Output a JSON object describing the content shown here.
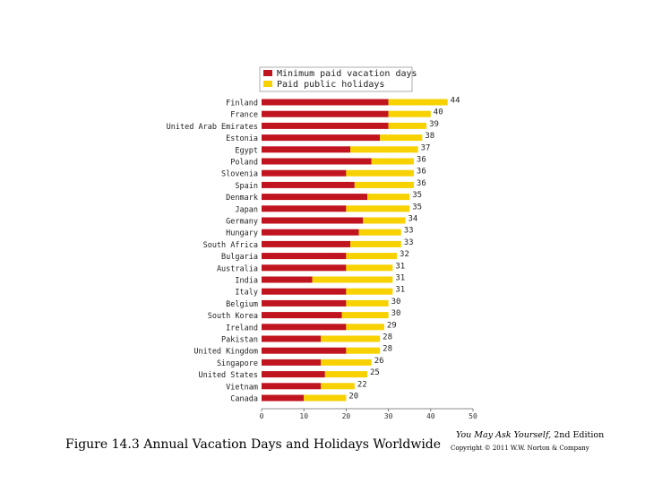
{
  "chart_data": {
    "type": "bar",
    "orientation": "horizontal",
    "stacked": true,
    "categories": [
      "Finland",
      "France",
      "United Arab Emirates",
      "Estonia",
      "Egypt",
      "Poland",
      "Slovenia",
      "Spain",
      "Denmark",
      "Japan",
      "Germany",
      "Hungary",
      "South Africa",
      "Bulgaria",
      "Australia",
      "India",
      "Italy",
      "Belgium",
      "South Korea",
      "Ireland",
      "Pakistan",
      "United Kingdom",
      "Singapore",
      "United States",
      "Vietnam",
      "Canada"
    ],
    "series": [
      {
        "name": "Minimum paid vacation days",
        "color": "#c0141f",
        "values": [
          30,
          30,
          30,
          28,
          21,
          26,
          20,
          22,
          25,
          20,
          24,
          23,
          21,
          20,
          20,
          12,
          20,
          20,
          19,
          20,
          14,
          20,
          14,
          15,
          14,
          10
        ]
      },
      {
        "name": "Paid public holidays",
        "color": "#f7d100",
        "values": [
          14,
          10,
          9,
          10,
          16,
          10,
          16,
          14,
          10,
          15,
          10,
          10,
          12,
          12,
          11,
          19,
          11,
          10,
          11,
          9,
          14,
          8,
          12,
          10,
          8,
          10
        ]
      }
    ],
    "totals": [
      "44",
      "40",
      "39",
      "38",
      "37",
      "36",
      "36",
      "36",
      "35",
      "35",
      "34",
      "33",
      "33",
      "32",
      "31",
      "31",
      "31",
      "30",
      "30",
      "29",
      "28",
      "28",
      "26",
      "25",
      "22",
      "20"
    ],
    "xlim": [
      0,
      50
    ],
    "xticks": [
      "0",
      "10",
      "20",
      "30",
      "40",
      "50"
    ],
    "legend_position": "top"
  },
  "caption": "Figure 14.3 Annual Vacation Days and Holidays Worldwide",
  "credit": {
    "book_title": "You May Ask Yourself,",
    "edition": "2nd Edition",
    "copyright": "Copyright © 2011 W.W. Norton & Company"
  }
}
